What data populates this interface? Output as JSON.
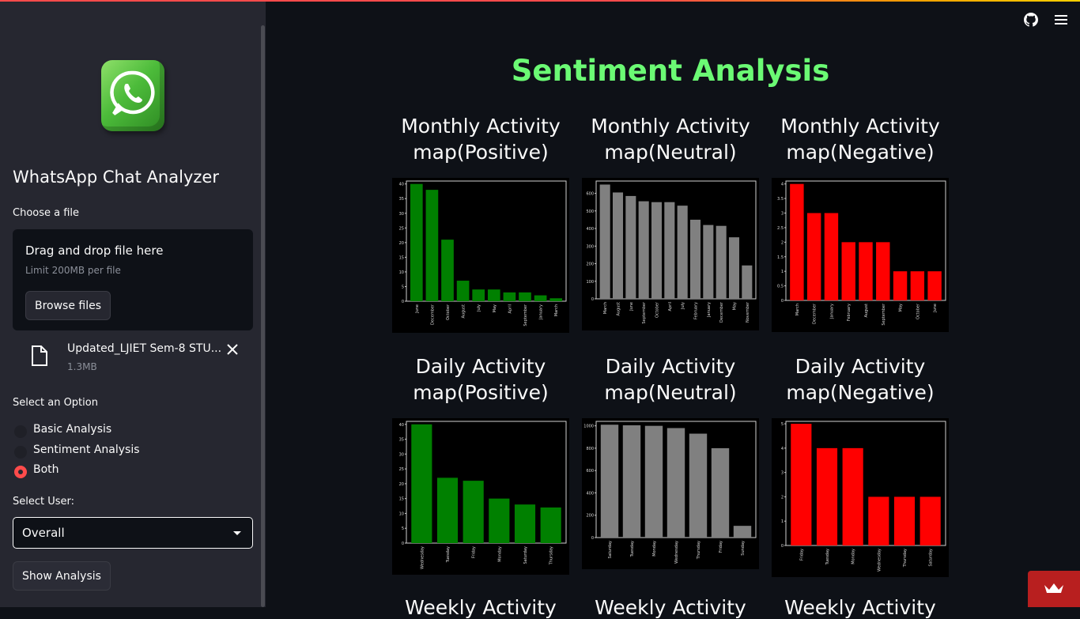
{
  "sidebar": {
    "app_title": "WhatsApp Chat Analyzer",
    "choose_label": "Choose a file",
    "dropzone_title": "Drag and drop file here",
    "dropzone_limit": "Limit 200MB per file",
    "browse_label": "Browse files",
    "file_name": "Updated_LJIET Sem-8 STU...",
    "file_size": "1.3MB",
    "option_label": "Select an Option",
    "options": [
      "Basic Analysis",
      "Sentiment Analysis",
      "Both"
    ],
    "selected_option": "Both",
    "user_label": "Select User:",
    "user_value": "Overall",
    "show_label": "Show Analysis"
  },
  "main": {
    "title": "Sentiment Analysis",
    "chart_titles": [
      "Monthly Activity map(Positive)",
      "Monthly Activity map(Neutral)",
      "Monthly Activity map(Negative)",
      "Daily Activity map(Positive)",
      "Daily Activity map(Neutral)",
      "Daily Activity map(Negative)"
    ],
    "bottom_titles": [
      "Weekly Activity",
      "Weekly Activity",
      "Weekly Activity"
    ]
  },
  "colors": {
    "accent": "#ff4b4b",
    "title_green": "#6bfa74",
    "positive": "#008000",
    "neutral": "#808080",
    "negative": "#ff0000"
  },
  "icons": {
    "github": "github-icon",
    "menu": "hamburger-menu-icon",
    "file": "file-icon",
    "close": "close-icon"
  },
  "chart_data": [
    {
      "type": "bar",
      "title": "Monthly Activity map(Positive)",
      "color": "#008000",
      "categories": [
        "June",
        "December",
        "October",
        "August",
        "July",
        "May",
        "April",
        "September",
        "January",
        "March"
      ],
      "values": [
        40,
        38,
        21,
        7,
        4,
        4,
        3,
        3,
        2,
        1
      ],
      "yticks": [
        0,
        5,
        10,
        15,
        20,
        25,
        30,
        35,
        40
      ],
      "ylim": [
        0,
        41
      ]
    },
    {
      "type": "bar",
      "title": "Monthly Activity map(Neutral)",
      "color": "#808080",
      "categories": [
        "March",
        "August",
        "June",
        "September",
        "October",
        "April",
        "July",
        "February",
        "January",
        "December",
        "May",
        "November"
      ],
      "values": [
        650,
        605,
        585,
        555,
        550,
        550,
        530,
        450,
        420,
        415,
        350,
        190
      ],
      "yticks": [
        0,
        100,
        200,
        300,
        400,
        500,
        600
      ],
      "ylim": [
        0,
        670
      ]
    },
    {
      "type": "bar",
      "title": "Monthly Activity map(Negative)",
      "color": "#ff0000",
      "categories": [
        "March",
        "December",
        "January",
        "February",
        "August",
        "September",
        "May",
        "October",
        "June"
      ],
      "values": [
        4,
        3,
        3,
        2,
        2,
        2,
        1,
        1,
        1
      ],
      "yticks": [
        0.0,
        0.5,
        1.0,
        1.5,
        2.0,
        2.5,
        3.0,
        3.5,
        4.0
      ],
      "ylim": [
        0,
        4.1
      ]
    },
    {
      "type": "bar",
      "title": "Daily Activity map(Positive)",
      "color": "#008000",
      "categories": [
        "Wednesday",
        "Tuesday",
        "Friday",
        "Monday",
        "Saturday",
        "Thursday"
      ],
      "values": [
        40,
        22,
        21,
        15,
        13,
        12
      ],
      "yticks": [
        0,
        5,
        10,
        15,
        20,
        25,
        30,
        35,
        40
      ],
      "ylim": [
        0,
        41
      ]
    },
    {
      "type": "bar",
      "title": "Daily Activity map(Neutral)",
      "color": "#808080",
      "categories": [
        "Saturday",
        "Tuesday",
        "Monday",
        "Wednesday",
        "Thursday",
        "Friday",
        "Sunday"
      ],
      "values": [
        1010,
        1005,
        1000,
        980,
        930,
        800,
        105
      ],
      "yticks": [
        0,
        200,
        400,
        600,
        800,
        1000
      ],
      "ylim": [
        0,
        1040
      ]
    },
    {
      "type": "bar",
      "title": "Daily Activity map(Negative)",
      "color": "#ff0000",
      "categories": [
        "Friday",
        "Tuesday",
        "Monday",
        "Wednesday",
        "Thursday",
        "Saturday"
      ],
      "values": [
        5,
        4,
        4,
        2,
        2,
        2
      ],
      "yticks": [
        0,
        1,
        2,
        3,
        4,
        5
      ],
      "ylim": [
        0,
        5.1
      ]
    }
  ]
}
